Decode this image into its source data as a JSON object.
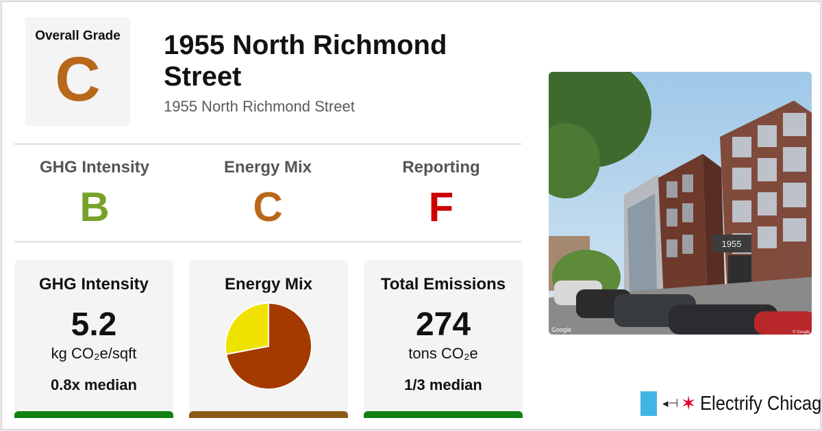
{
  "overall": {
    "label": "Overall Grade",
    "grade": "C",
    "color": "#b8681a"
  },
  "building": {
    "title": "1955 North Richmond Street",
    "address": "1955 North Richmond Street"
  },
  "grades": [
    {
      "name": "GHG Intensity",
      "grade": "B",
      "color": "#76a22a"
    },
    {
      "name": "Energy Mix",
      "grade": "C",
      "color": "#b8681a"
    },
    {
      "name": "Reporting",
      "grade": "F",
      "color": "#cc0000"
    }
  ],
  "cards": {
    "ghg": {
      "title": "GHG Intensity",
      "value": "5.2",
      "unit": "kg CO₂e/sqft",
      "median": "0.8x median",
      "bar_color": "#128012"
    },
    "mix": {
      "title": "Energy Mix",
      "bar_color": "#8b5a14"
    },
    "emissions": {
      "title": "Total Emissions",
      "value": "274",
      "unit": "tons CO₂e",
      "median": "1/3 median",
      "bar_color": "#128012"
    }
  },
  "chart_data": {
    "type": "pie",
    "slices": [
      {
        "value": 0.72,
        "color": "#a53a00"
      },
      {
        "value": 0.28,
        "color": "#f0e200"
      }
    ]
  },
  "photo": {
    "attribution_left": "Google",
    "attribution_right": "© Google",
    "building_number": "1955"
  },
  "logo": {
    "brand": "Electrify Chicago",
    "flag_color": "#41b6e6",
    "star_color": "#e4002b"
  }
}
